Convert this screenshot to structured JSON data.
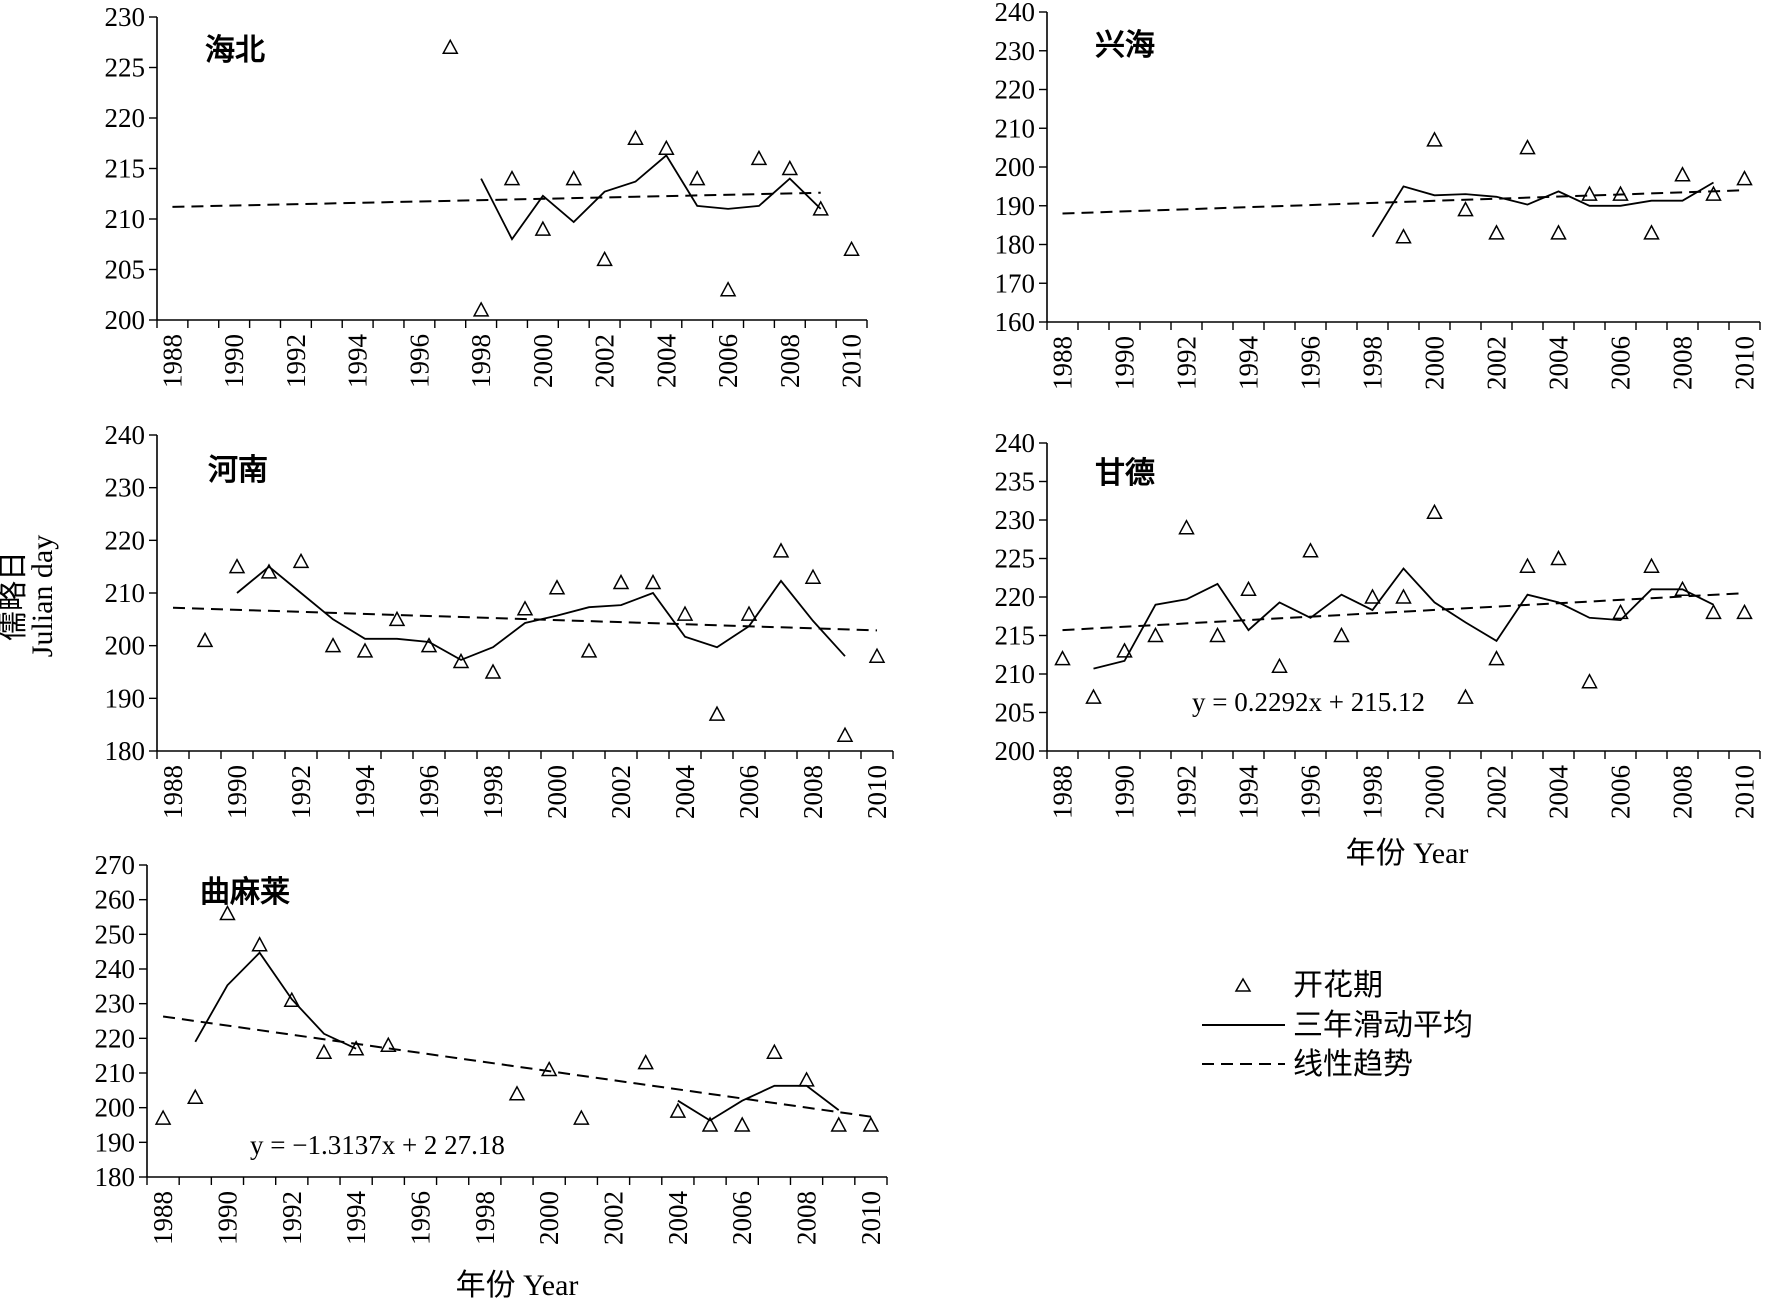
{
  "ylabel_cn": "儒略日",
  "ylabel_en": "Julian day",
  "xlabel": "年份 Year",
  "legend": {
    "flowering": "开花期",
    "moving_avg": "三年滑动平均",
    "linear_trend": "线性趋势"
  },
  "chart_data": [
    {
      "type": "scatter",
      "title": "海北",
      "xlim": [
        1988,
        2010
      ],
      "ylim": [
        200,
        230
      ],
      "yticks": [
        200,
        205,
        210,
        215,
        220,
        225,
        230
      ],
      "xticks": [
        1988,
        1990,
        1992,
        1994,
        1996,
        1998,
        2000,
        2002,
        2004,
        2006,
        2008,
        2010
      ],
      "equation": "",
      "flowering": [
        [
          1997,
          227
        ],
        [
          1998,
          201
        ],
        [
          1999,
          214
        ],
        [
          2000,
          209
        ],
        [
          2001,
          214
        ],
        [
          2002,
          206
        ],
        [
          2003,
          218
        ],
        [
          2004,
          217
        ],
        [
          2005,
          214
        ],
        [
          2006,
          203
        ],
        [
          2007,
          216
        ],
        [
          2008,
          215
        ],
        [
          2009,
          211
        ],
        [
          2010,
          207
        ]
      ],
      "moving_avg": [
        [
          1998,
          214
        ],
        [
          1999,
          208
        ],
        [
          2000,
          212.3
        ],
        [
          2001,
          209.7
        ],
        [
          2002,
          212.7
        ],
        [
          2003,
          213.7
        ],
        [
          2004,
          216.3
        ],
        [
          2005,
          211.3
        ],
        [
          2006,
          211
        ],
        [
          2007,
          211.3
        ],
        [
          2008,
          214
        ],
        [
          2009,
          211
        ]
      ],
      "trend": [
        [
          1988,
          211.2
        ],
        [
          2009,
          212.6
        ]
      ]
    },
    {
      "type": "scatter",
      "title": "兴海",
      "xlim": [
        1988,
        2010
      ],
      "ylim": [
        160,
        240
      ],
      "yticks": [
        160,
        170,
        180,
        190,
        200,
        210,
        220,
        230,
        240
      ],
      "xticks": [
        1988,
        1990,
        1992,
        1994,
        1996,
        1998,
        2000,
        2002,
        2004,
        2006,
        2008,
        2010
      ],
      "equation": "",
      "flowering": [
        [
          1999,
          182
        ],
        [
          2000,
          207
        ],
        [
          2001,
          189
        ],
        [
          2002,
          183
        ],
        [
          2003,
          205
        ],
        [
          2004,
          183
        ],
        [
          2005,
          193
        ],
        [
          2006,
          193
        ],
        [
          2007,
          183
        ],
        [
          2008,
          198
        ],
        [
          2009,
          193
        ],
        [
          2010,
          197
        ]
      ],
      "moving_avg": [
        [
          1998,
          182
        ],
        [
          1999,
          195
        ],
        [
          2000,
          192.7
        ],
        [
          2001,
          193
        ],
        [
          2002,
          192.3
        ],
        [
          2003,
          190.3
        ],
        [
          2004,
          193.7
        ],
        [
          2005,
          190
        ],
        [
          2006,
          190
        ],
        [
          2007,
          191.3
        ],
        [
          2008,
          191.3
        ],
        [
          2009,
          196
        ]
      ],
      "trend": [
        [
          1988,
          188
        ],
        [
          2010,
          194
        ]
      ]
    },
    {
      "type": "scatter",
      "title": "河南",
      "xlim": [
        1988,
        2010
      ],
      "ylim": [
        180,
        240
      ],
      "yticks": [
        180,
        190,
        200,
        210,
        220,
        230,
        240
      ],
      "xticks": [
        1988,
        1990,
        1992,
        1994,
        1996,
        1998,
        2000,
        2002,
        2004,
        2006,
        2008,
        2010
      ],
      "equation": "",
      "flowering": [
        [
          1989,
          201
        ],
        [
          1990,
          215
        ],
        [
          1991,
          214
        ],
        [
          1992,
          216
        ],
        [
          1993,
          200
        ],
        [
          1994,
          199
        ],
        [
          1995,
          205
        ],
        [
          1996,
          200
        ],
        [
          1997,
          197
        ],
        [
          1998,
          195
        ],
        [
          1999,
          207
        ],
        [
          2000,
          211
        ],
        [
          2001,
          199
        ],
        [
          2002,
          212
        ],
        [
          2003,
          212
        ],
        [
          2004,
          206
        ],
        [
          2005,
          187
        ],
        [
          2006,
          206
        ],
        [
          2007,
          218
        ],
        [
          2008,
          213
        ],
        [
          2009,
          183
        ],
        [
          2010,
          198
        ]
      ],
      "moving_avg": [
        [
          1990,
          210
        ],
        [
          1991,
          215
        ],
        [
          1992,
          210
        ],
        [
          1993,
          205
        ],
        [
          1994,
          201.3
        ],
        [
          1995,
          201.3
        ],
        [
          1996,
          200.7
        ],
        [
          1997,
          197.3
        ],
        [
          1998,
          199.7
        ],
        [
          1999,
          204.3
        ],
        [
          2000,
          205.7
        ],
        [
          2001,
          207.3
        ],
        [
          2002,
          207.7
        ],
        [
          2003,
          210
        ],
        [
          2004,
          201.7
        ],
        [
          2005,
          199.7
        ],
        [
          2006,
          203.7
        ],
        [
          2007,
          212.3
        ],
        [
          2008,
          204.7
        ],
        [
          2009,
          198
        ]
      ],
      "trend": [
        [
          1988,
          207.2
        ],
        [
          2010,
          202.9
        ]
      ]
    },
    {
      "type": "scatter",
      "title": "甘德",
      "xlim": [
        1988,
        2010
      ],
      "ylim": [
        200,
        240
      ],
      "yticks": [
        200,
        205,
        210,
        215,
        220,
        225,
        230,
        235,
        240
      ],
      "xticks": [
        1988,
        1990,
        1992,
        1994,
        1996,
        1998,
        2000,
        2002,
        2004,
        2006,
        2008,
        2010
      ],
      "equation": "y = 0.2292x + 215.12",
      "flowering": [
        [
          1988,
          212
        ],
        [
          1989,
          207
        ],
        [
          1990,
          213
        ],
        [
          1991,
          215
        ],
        [
          1992,
          229
        ],
        [
          1993,
          215
        ],
        [
          1994,
          221
        ],
        [
          1995,
          211
        ],
        [
          1996,
          226
        ],
        [
          1997,
          215
        ],
        [
          1998,
          220
        ],
        [
          1999,
          220
        ],
        [
          2000,
          231
        ],
        [
          2001,
          207
        ],
        [
          2002,
          212
        ],
        [
          2003,
          224
        ],
        [
          2004,
          225
        ],
        [
          2005,
          209
        ],
        [
          2006,
          218
        ],
        [
          2007,
          224
        ],
        [
          2008,
          221
        ],
        [
          2009,
          218
        ],
        [
          2010,
          218
        ]
      ],
      "moving_avg": [
        [
          1989,
          210.7
        ],
        [
          1990,
          211.7
        ],
        [
          1991,
          219
        ],
        [
          1992,
          219.7
        ],
        [
          1993,
          221.7
        ],
        [
          1994,
          215.7
        ],
        [
          1995,
          219.3
        ],
        [
          1996,
          217.3
        ],
        [
          1997,
          220.3
        ],
        [
          1998,
          218.3
        ],
        [
          1999,
          223.7
        ],
        [
          2000,
          219.3
        ],
        [
          2001,
          216.7
        ],
        [
          2002,
          214.3
        ],
        [
          2003,
          220.3
        ],
        [
          2004,
          219.3
        ],
        [
          2005,
          217.3
        ],
        [
          2006,
          217
        ],
        [
          2007,
          221
        ],
        [
          2008,
          221
        ],
        [
          2009,
          219
        ]
      ],
      "trend": [
        [
          1988,
          215.7
        ],
        [
          2010,
          220.5
        ]
      ]
    },
    {
      "type": "scatter",
      "title": "曲麻莱",
      "xlim": [
        1988,
        2010
      ],
      "ylim": [
        180,
        270
      ],
      "yticks": [
        180,
        190,
        200,
        210,
        220,
        230,
        240,
        250,
        260,
        270
      ],
      "xticks": [
        1988,
        1990,
        1992,
        1994,
        1996,
        1998,
        2000,
        2002,
        2004,
        2006,
        2008,
        2010
      ],
      "equation": "y = −1.3137x + 2 27.18",
      "flowering": [
        [
          1988,
          197
        ],
        [
          1989,
          203
        ],
        [
          1990,
          256
        ],
        [
          1991,
          247
        ],
        [
          1992,
          231
        ],
        [
          1993,
          216
        ],
        [
          1994,
          217
        ],
        [
          1995,
          218
        ],
        [
          1999,
          204
        ],
        [
          2000,
          211
        ],
        [
          2001,
          197
        ],
        [
          2003,
          213
        ],
        [
          2004,
          199
        ],
        [
          2005,
          195
        ],
        [
          2006,
          195
        ],
        [
          2007,
          216
        ],
        [
          2008,
          208
        ],
        [
          2009,
          195
        ],
        [
          2010,
          195
        ]
      ],
      "moving_avg": [
        [
          1989,
          219
        ],
        [
          1990,
          235.3
        ],
        [
          1991,
          244.7
        ],
        [
          1992,
          231.3
        ],
        [
          1993,
          221.3
        ],
        [
          1994,
          217
        ],
        [
          2004,
          202
        ],
        [
          2005,
          196.3
        ],
        [
          2006,
          202
        ],
        [
          2007,
          206.3
        ],
        [
          2008,
          206.3
        ],
        [
          2009,
          199.3
        ]
      ],
      "trend": [
        [
          1988,
          226.3
        ],
        [
          2010,
          197.4
        ]
      ]
    }
  ]
}
